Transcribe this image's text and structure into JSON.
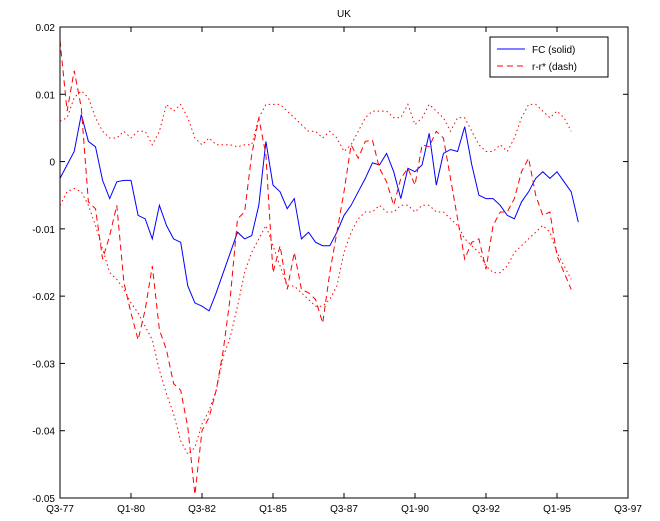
{
  "chart_data": {
    "type": "line",
    "title": "UK",
    "xlabel": "",
    "ylabel": "",
    "ylim": [
      -0.05,
      0.02
    ],
    "y_ticks": [
      0.02,
      0.01,
      0,
      -0.01,
      -0.02,
      -0.03,
      -0.04,
      -0.05
    ],
    "y_tick_labels": [
      "0.02",
      "0.01",
      "0",
      "-0.01",
      "-0.02",
      "-0.03",
      "-0.04",
      "-0.05"
    ],
    "x_ticks": [
      "Q3-77",
      "Q1-80",
      "Q3-82",
      "Q1-85",
      "Q3-87",
      "Q1-90",
      "Q3-92",
      "Q1-95",
      "Q3-97"
    ],
    "grid": false,
    "legend_position": "top-right",
    "legend": [
      "FC (solid)",
      "r-r* (dash)"
    ],
    "x_quarters_from": "Q3-77",
    "series": [
      {
        "name": "FC (solid)",
        "style": "solid",
        "color": "#0000ff",
        "values": [
          -0.0025,
          -0.0005,
          0.0015,
          0.007,
          0.003,
          0.0022,
          -0.0028,
          -0.0055,
          -0.003,
          -0.0028,
          -0.0028,
          -0.008,
          -0.0085,
          -0.0115,
          -0.0065,
          -0.0095,
          -0.0115,
          -0.012,
          -0.0185,
          -0.021,
          -0.0215,
          -0.0222,
          -0.0195,
          -0.0165,
          -0.0135,
          -0.0105,
          -0.0115,
          -0.011,
          -0.0065,
          0.003,
          -0.0035,
          -0.0045,
          -0.007,
          -0.0055,
          -0.0115,
          -0.0105,
          -0.012,
          -0.0125,
          -0.0125,
          -0.0105,
          -0.008,
          -0.0065,
          -0.0045,
          -0.0025,
          -0.0002,
          -0.0005,
          0.0012,
          -0.0015,
          -0.0055,
          -0.001,
          -0.0015,
          -0.0005,
          0.0042,
          -0.0035,
          0.0012,
          0.0018,
          0.0015,
          0.0052,
          -0.0005,
          -0.005,
          -0.0055,
          -0.0055,
          -0.0065,
          -0.008,
          -0.0085,
          -0.006,
          -0.0045,
          -0.0025,
          -0.0015,
          -0.0025,
          -0.0015,
          -0.003,
          -0.0045,
          -0.009
        ]
      },
      {
        "name": "r-r* (dash)",
        "style": "dash",
        "color": "#ff0000",
        "values": [
          0.018,
          0.0075,
          0.0135,
          0.008,
          -0.006,
          -0.007,
          -0.0145,
          -0.011,
          -0.0065,
          -0.018,
          -0.0225,
          -0.0265,
          -0.022,
          -0.0155,
          -0.025,
          -0.028,
          -0.033,
          -0.034,
          -0.0395,
          -0.0495,
          -0.04,
          -0.038,
          -0.034,
          -0.028,
          -0.02,
          -0.0085,
          -0.0075,
          0.001,
          0.0065,
          0.001,
          -0.0165,
          -0.0125,
          -0.019,
          -0.0135,
          -0.019,
          -0.0195,
          -0.0205,
          -0.024,
          -0.0165,
          -0.0105,
          -0.0045,
          0.0025,
          0.0005,
          0.003,
          0.0032,
          -0.001,
          -0.003,
          -0.0065,
          -0.0025,
          -0.001,
          -0.0035,
          0.0025,
          0.0022,
          0.0045,
          0.0035,
          -0.0025,
          -0.0085,
          -0.0145,
          -0.012,
          -0.0115,
          -0.016,
          -0.0095,
          -0.0075,
          -0.0075,
          -0.0055,
          -0.0015,
          0.0005,
          -0.005,
          -0.008,
          -0.0075,
          -0.014,
          -0.0165,
          -0.019
        ]
      },
      {
        "name": "",
        "style": "dotted",
        "color": "#ff0000",
        "values": [
          0.006,
          0.0065,
          0.0095,
          0.0105,
          0.0095,
          0.0065,
          0.0045,
          0.0035,
          0.0035,
          0.0045,
          0.0035,
          0.0045,
          0.0045,
          0.0025,
          0.0045,
          0.0085,
          0.0075,
          0.0085,
          0.0065,
          0.0035,
          0.0025,
          0.0035,
          0.0025,
          0.0025,
          0.0025,
          0.0022,
          0.0025,
          0.0025,
          0.0065,
          0.0085,
          0.0085,
          0.0085,
          0.0075,
          0.0065,
          0.0055,
          0.0045,
          0.0045,
          0.0035,
          0.0045,
          0.0035,
          0.0015,
          0.0025,
          0.0045,
          0.0065,
          0.0075,
          0.0075,
          0.0075,
          0.0065,
          0.0065,
          0.0085,
          0.0055,
          0.0065,
          0.0085,
          0.0075,
          0.0065,
          0.0045,
          0.0065,
          0.0065,
          0.0045,
          0.0025,
          0.0015,
          0.0015,
          0.0025,
          0.0015,
          0.0035,
          0.0065,
          0.0085,
          0.0085,
          0.0075,
          0.0065,
          0.0075,
          0.0065,
          0.0045
        ]
      },
      {
        "name": "",
        "style": "dotted",
        "color": "#ff0000",
        "values": [
          -0.0065,
          -0.0045,
          -0.004,
          -0.0045,
          -0.0065,
          -0.0095,
          -0.013,
          -0.0165,
          -0.0175,
          -0.019,
          -0.021,
          -0.0225,
          -0.0245,
          -0.0265,
          -0.031,
          -0.0345,
          -0.0375,
          -0.0415,
          -0.0435,
          -0.0425,
          -0.039,
          -0.037,
          -0.034,
          -0.029,
          -0.026,
          -0.0215,
          -0.0165,
          -0.0135,
          -0.0115,
          -0.0095,
          -0.0125,
          -0.0155,
          -0.0185,
          -0.0185,
          -0.0195,
          -0.0205,
          -0.0215,
          -0.0215,
          -0.0205,
          -0.0185,
          -0.0135,
          -0.0105,
          -0.0085,
          -0.0075,
          -0.0075,
          -0.0065,
          -0.0075,
          -0.0075,
          -0.0065,
          -0.0065,
          -0.0075,
          -0.0065,
          -0.0065,
          -0.0075,
          -0.0075,
          -0.0085,
          -0.0095,
          -0.0115,
          -0.0125,
          -0.0135,
          -0.0155,
          -0.0165,
          -0.0165,
          -0.0155,
          -0.0135,
          -0.0125,
          -0.0115,
          -0.0105,
          -0.0095,
          -0.0105,
          -0.0135,
          -0.0155,
          -0.0175
        ]
      }
    ]
  }
}
